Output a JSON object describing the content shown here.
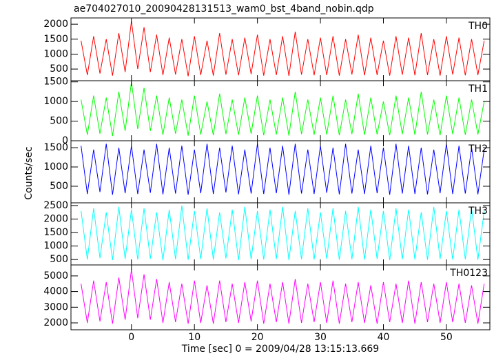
{
  "chart_data": {
    "type": "line",
    "title": "ae704027010_20090428131513_wam0_bst_4band_nobin.qdp",
    "x_label": "Time [sec] 0 = 2009/04/28 13:15:13.669",
    "y_label": "Counts/sec",
    "x": [
      -8,
      -7,
      -6,
      -5,
      -4,
      -3,
      -2,
      -1,
      0,
      1,
      2,
      3,
      4,
      5,
      6,
      7,
      8,
      9,
      10,
      11,
      12,
      13,
      14,
      15,
      16,
      17,
      18,
      19,
      20,
      21,
      22,
      23,
      24,
      25,
      26,
      27,
      28,
      29,
      30,
      31,
      32,
      33,
      34,
      35,
      36,
      37,
      38,
      39,
      40,
      41,
      42,
      43,
      44,
      45,
      46,
      47,
      48,
      49,
      50,
      51,
      52,
      53,
      54,
      55,
      56
    ],
    "xlim": [
      -9.6,
      56.9
    ],
    "xticks": [
      0,
      10,
      20,
      30,
      40,
      50
    ],
    "series": [
      {
        "name": "TH0",
        "color": "#ff0000",
        "ylim": [
          110,
          2210
        ],
        "yticks": [
          500,
          1000,
          1500,
          2000
        ],
        "values": [
          1450,
          300,
          1600,
          350,
          1500,
          280,
          1700,
          400,
          2100,
          500,
          1900,
          400,
          1650,
          300,
          1550,
          320,
          1500,
          260,
          1600,
          300,
          1450,
          280,
          1700,
          310,
          1500,
          290,
          1550,
          330,
          1650,
          280,
          1500,
          300,
          1600,
          270,
          1750,
          310,
          1500,
          290,
          1550,
          300,
          1600,
          280,
          1500,
          320,
          1650,
          290,
          1550,
          300,
          1450,
          280,
          1600,
          310,
          1550,
          290,
          1700,
          300,
          1500,
          280,
          1600,
          320,
          1550,
          290,
          1500,
          300,
          1450
        ]
      },
      {
        "name": "TH1",
        "color": "#00ff00",
        "ylim": [
          0,
          1530
        ],
        "yticks": [
          0,
          500,
          1000,
          1500
        ],
        "values": [
          1050,
          150,
          1150,
          180,
          1100,
          120,
          1250,
          250,
          1500,
          300,
          1350,
          250,
          1150,
          150,
          1100,
          180,
          1050,
          130,
          1150,
          160,
          1000,
          140,
          1200,
          170,
          1050,
          150,
          1100,
          180,
          1150,
          140,
          1050,
          160,
          1100,
          130,
          1250,
          170,
          1050,
          150,
          1100,
          160,
          1150,
          140,
          1050,
          170,
          1200,
          150,
          1100,
          160,
          1000,
          140,
          1150,
          170,
          1100,
          150,
          1250,
          160,
          1050,
          140,
          1150,
          170,
          1100,
          150,
          1050,
          160,
          1000
        ]
      },
      {
        "name": "TH2",
        "color": "#0000ff",
        "ylim": [
          70,
          1680
        ],
        "yticks": [
          500,
          1000,
          1500
        ],
        "values": [
          1550,
          300,
          1450,
          350,
          1600,
          280,
          1500,
          320,
          1550,
          300,
          1450,
          330,
          1600,
          290,
          1500,
          310,
          1550,
          280,
          1450,
          320,
          1600,
          300,
          1500,
          340,
          1550,
          290,
          1450,
          310,
          1600,
          300,
          1500,
          320,
          1550,
          280,
          1600,
          310,
          1450,
          300,
          1550,
          330,
          1500,
          290,
          1600,
          310,
          1450,
          300,
          1550,
          320,
          1500,
          280,
          1600,
          310,
          1550,
          300,
          1500,
          290,
          1450,
          320,
          1600,
          300,
          1550,
          310,
          1500,
          290,
          1450
        ]
      },
      {
        "name": "TH3",
        "color": "#00ffff",
        "ylim": [
          300,
          2600
        ],
        "yticks": [
          500,
          1000,
          1500,
          2000,
          2500
        ],
        "values": [
          2300,
          500,
          2400,
          550,
          2250,
          480,
          2450,
          520,
          2350,
          500,
          2400,
          530,
          2250,
          470,
          2350,
          510,
          2500,
          490,
          2300,
          520,
          2400,
          500,
          2250,
          540,
          2350,
          480,
          2450,
          510,
          2300,
          500,
          2350,
          520,
          2450,
          480,
          2300,
          510,
          2400,
          500,
          2250,
          530,
          2400,
          490,
          2300,
          510,
          2450,
          500,
          2350,
          520,
          2300,
          480,
          2400,
          510,
          2350,
          500,
          2250,
          490,
          2450,
          520,
          2300,
          500,
          2350,
          510,
          2400,
          490,
          2300
        ]
      },
      {
        "name": "TH0123",
        "color": "#ff00ff",
        "ylim": [
          1560,
          5700
        ],
        "yticks": [
          2000,
          3000,
          4000,
          5000
        ],
        "values": [
          4500,
          2000,
          4700,
          2100,
          4600,
          1950,
          4900,
          2200,
          5400,
          2300,
          5100,
          2200,
          4800,
          2000,
          4600,
          2050,
          4500,
          1950,
          4700,
          2000,
          4400,
          1950,
          4700,
          2050,
          4500,
          2000,
          4600,
          2100,
          4700,
          1950,
          4500,
          2050,
          4600,
          1950,
          4800,
          2000,
          4500,
          2050,
          4600,
          2000,
          4700,
          1950,
          4500,
          2050,
          4600,
          2000,
          4400,
          1950,
          4600,
          2050,
          4500,
          2000,
          4700,
          1950,
          4600,
          2050,
          4500,
          2000,
          4600,
          2050,
          4500,
          2000,
          4400,
          1950,
          4500
        ]
      }
    ]
  }
}
